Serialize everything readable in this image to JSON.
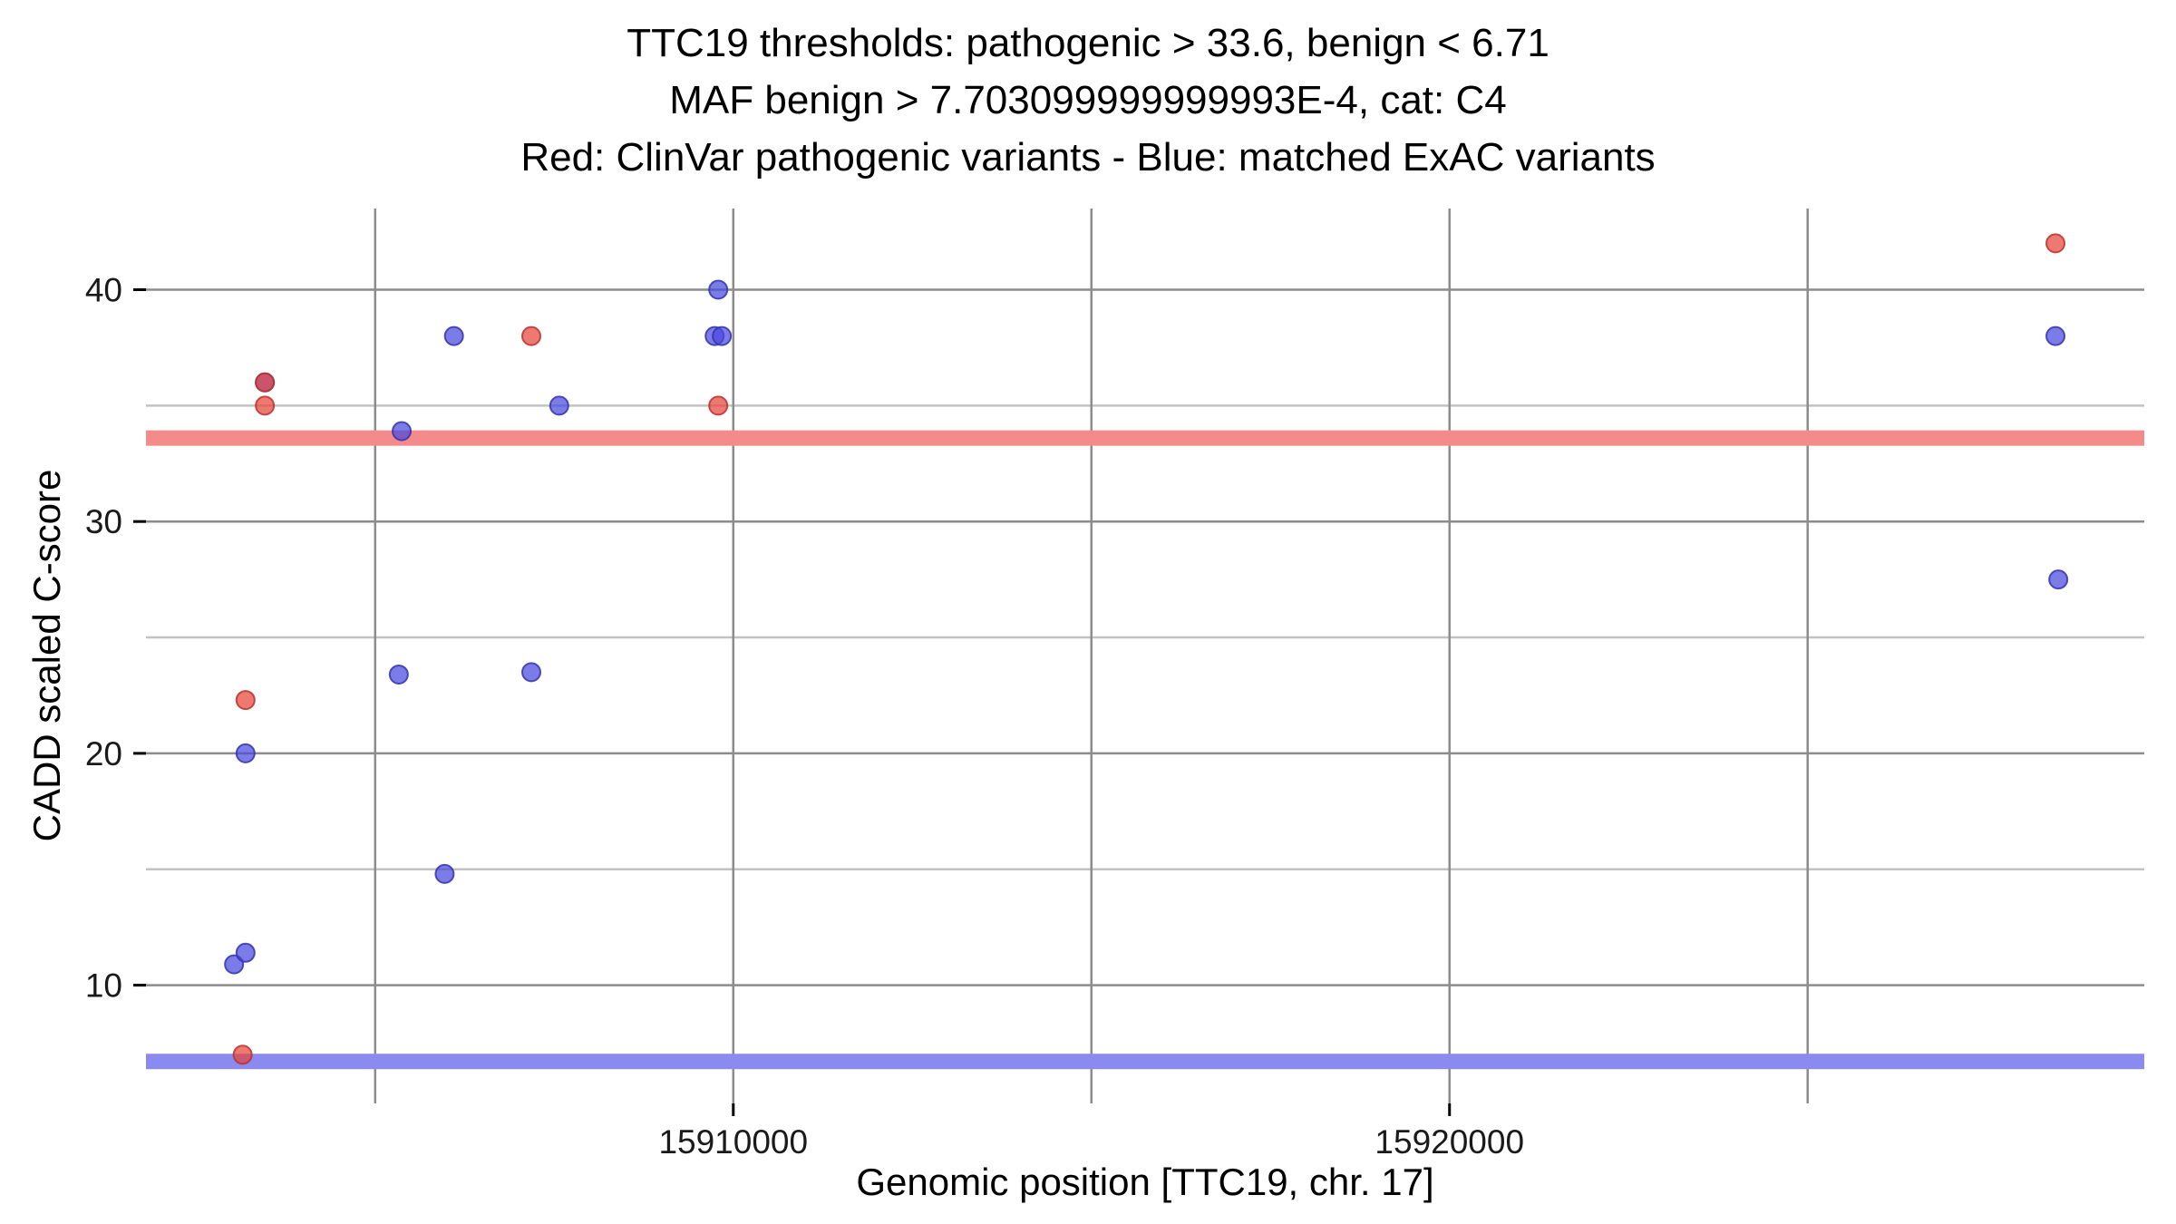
{
  "title": {
    "line1": "TTC19 thresholds: pathogenic > 33.6, benign < 6.71",
    "line2": "MAF benign > 7.703099999999993E-4, cat: C4",
    "line3": "Red: ClinVar pathogenic variants - Blue: matched ExAC variants"
  },
  "chart_data": {
    "type": "scatter",
    "title": "TTC19 thresholds: pathogenic > 33.6, benign < 6.71 | MAF benign > 7.703099999999993E-4, cat: C4 | Red: ClinVar pathogenic variants - Blue: matched ExAC variants",
    "xlabel": "Genomic position [TTC19, chr. 17]",
    "ylabel": "CADD scaled C-score",
    "xlim": [
      15901800,
      15929700
    ],
    "ylim": [
      4.9,
      43.5
    ],
    "grid": true,
    "legend_position": "none",
    "x_ticks": [
      {
        "value": 15910000,
        "label": "15910000"
      },
      {
        "value": 15920000,
        "label": "15920000"
      }
    ],
    "y_ticks": [
      {
        "value": 40,
        "label": "40"
      },
      {
        "value": 30,
        "label": "30"
      },
      {
        "value": 20,
        "label": "20"
      },
      {
        "value": 10,
        "label": "10"
      }
    ],
    "x_gridlines": [
      15905000,
      15910000,
      15915000,
      15920000,
      15925000
    ],
    "y_minor_gridlines": [
      15,
      25,
      35
    ],
    "style": {
      "background": "#ffffff",
      "major_grid_color": "#8c8c8c",
      "minor_grid_color": "#c2c2c2",
      "tick_color": "#000000",
      "tick_label_color": "#1a1a1a"
    },
    "thresholds": {
      "pathogenic": {
        "value": 33.6,
        "color": "#f58a8a",
        "label": "pathogenic > 33.6"
      },
      "benign": {
        "value": 6.71,
        "color": "#8a8af0",
        "label": "benign < 6.71"
      }
    },
    "series": [
      {
        "id": "clinvar-pathogenic",
        "name": "ClinVar pathogenic variants",
        "color": "#e8453c",
        "stroke": "#b8332c",
        "points": [
          [
            15903150,
            7.0
          ],
          [
            15903190,
            22.3
          ],
          [
            15903460,
            35.0
          ],
          [
            15903460,
            36.0
          ],
          [
            15907180,
            38.0
          ],
          [
            15909790,
            35.0
          ],
          [
            15928460,
            42.0
          ]
        ]
      },
      {
        "id": "exac-matched",
        "name": "matched ExAC variants",
        "color": "#4a4ae0",
        "stroke": "#3434ad",
        "points": [
          [
            15903030,
            10.9
          ],
          [
            15903190,
            11.4
          ],
          [
            15903190,
            20.0
          ],
          [
            15903460,
            36.0
          ],
          [
            15905330,
            23.4
          ],
          [
            15905370,
            33.9
          ],
          [
            15905970,
            14.8
          ],
          [
            15906100,
            38.0
          ],
          [
            15907180,
            23.5
          ],
          [
            15907570,
            35.0
          ],
          [
            15909740,
            38.0
          ],
          [
            15909840,
            38.0
          ],
          [
            15909790,
            40.0
          ],
          [
            15928460,
            38.0
          ],
          [
            15928500,
            27.5
          ]
        ]
      }
    ]
  }
}
